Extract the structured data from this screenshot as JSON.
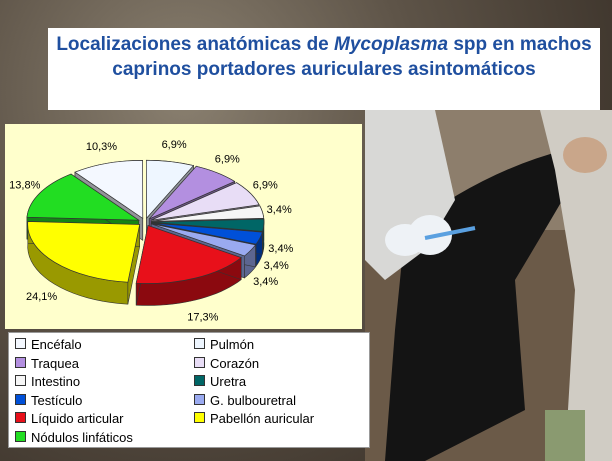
{
  "chart_data": {
    "type": "pie",
    "title_parts": [
      "Localizaciones anatómicas de ",
      "Mycoplasma",
      " spp en machos caprinos portadores auriculares asintomáticos"
    ],
    "categories": [
      "Encéfalo",
      "Pulmón",
      "Traquea",
      "Corazón",
      "Intestino",
      "Uretra",
      "Testículo",
      "G. bulbouretral",
      "Líquido articular",
      "Pabellón auricular",
      "Nódulos linfáticos"
    ],
    "values": [
      10.3,
      6.9,
      6.9,
      6.9,
      3.4,
      3.4,
      3.4,
      3.4,
      17.3,
      24.1,
      13.8
    ],
    "value_labels": [
      "10,3%",
      "6,9%",
      "6,9%",
      "6,9%",
      "3,4%",
      "3,4%",
      "3,4%",
      "3,4%",
      "17,3%",
      "24,1%",
      "13,8%"
    ],
    "colors": [
      "#f4f8ff",
      "#eef6ff",
      "#b38fe0",
      "#e8ddf6",
      "#f6f6f6",
      "#006666",
      "#0050d8",
      "#9aaaf0",
      "#e8101a",
      "#ffff00",
      "#22dd22"
    ],
    "legend_position": "bottom"
  }
}
